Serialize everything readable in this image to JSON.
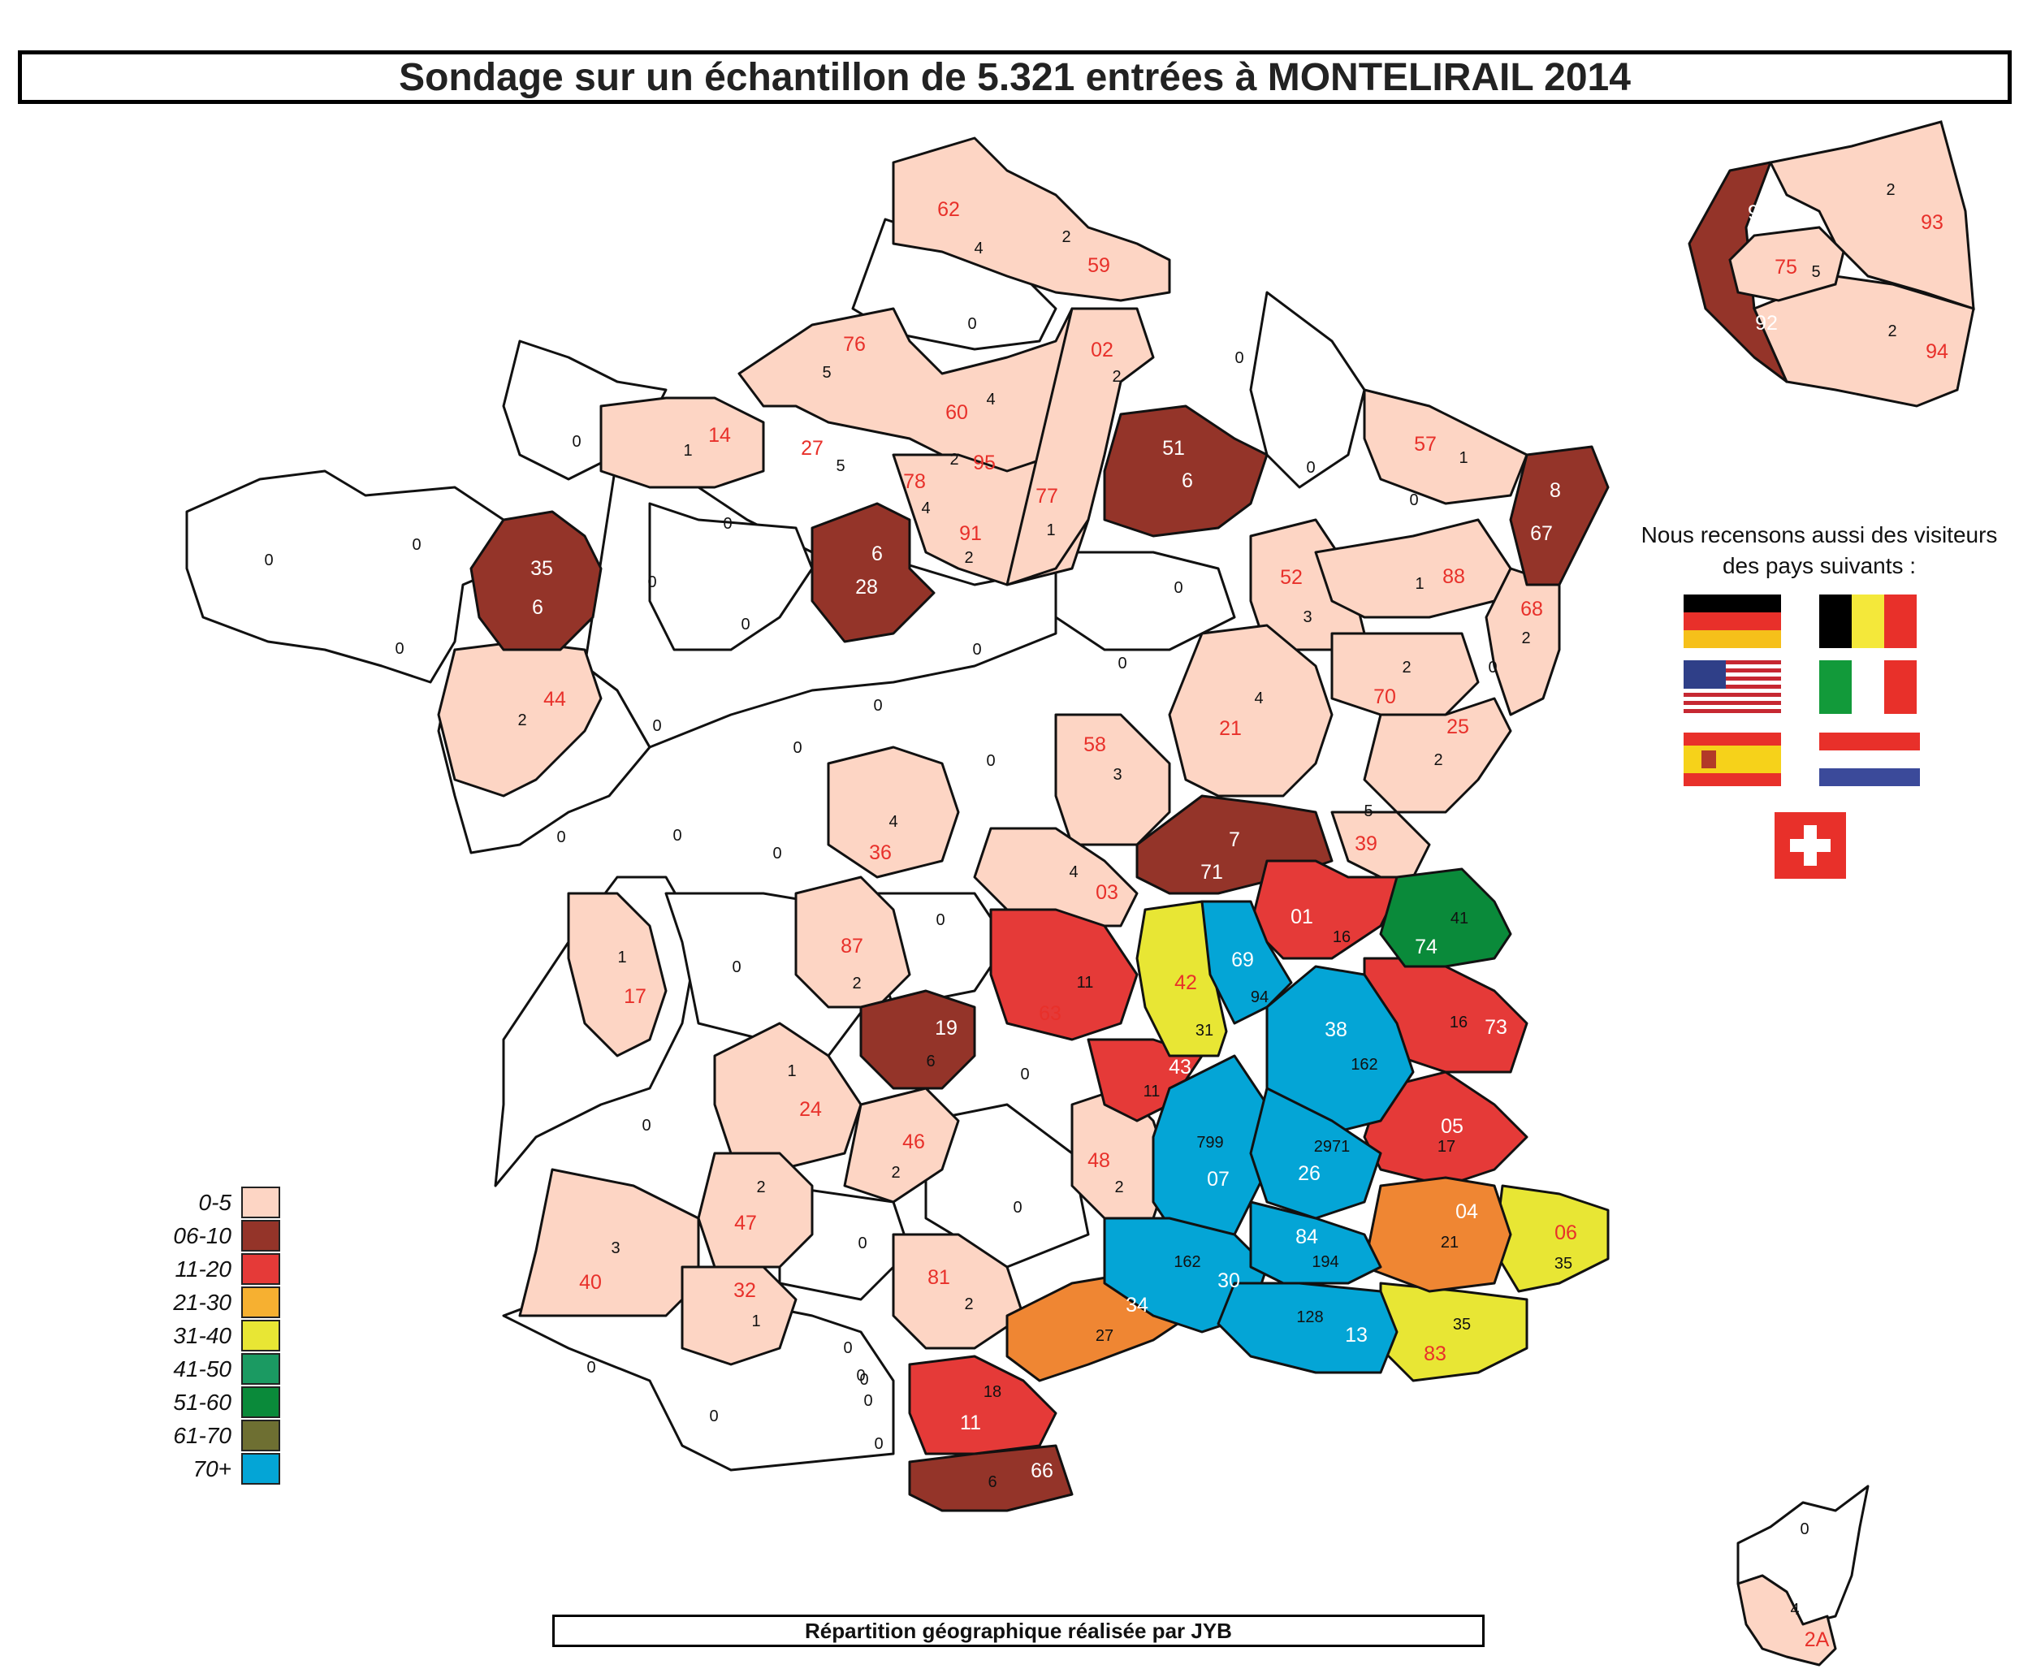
{
  "title": "Sondage sur un échantillon de  5.321 entrées à MONTELIRAIL 2014",
  "footer": "Répartition géographique réalisée par JYB",
  "legend": [
    {
      "label": "0-5",
      "color": "#fdd5c4"
    },
    {
      "label": "06-10",
      "color": "#943429"
    },
    {
      "label": "11-20",
      "color": "#e53a38"
    },
    {
      "label": "21-30",
      "color": "#f6b031"
    },
    {
      "label": "31-40",
      "color": "#e8e634"
    },
    {
      "label": "41-50",
      "color": "#1b9a62"
    },
    {
      "label": "51-60",
      "color": "#0a8a3a"
    },
    {
      "label": "61-70",
      "color": "#6e6f32"
    },
    {
      "label": "70+",
      "color": "#04a5d6"
    }
  ],
  "foreign_note": "Nous recensons aussi des visiteurs des pays suivants :",
  "foreign_flags": [
    "germany-flag",
    "belgium-flag",
    "usa-flag",
    "italy-flag",
    "spain-flag",
    "netherlands-flag",
    "switzerland-flag"
  ],
  "departments": [
    {
      "code": "62",
      "count": "4"
    },
    {
      "code": "59",
      "count": "2"
    },
    {
      "code": "",
      "count": "0"
    },
    {
      "code": "76",
      "count": "5"
    },
    {
      "code": "02",
      "count": "2"
    },
    {
      "code": "",
      "count": "0"
    },
    {
      "code": "60",
      "count": "4"
    },
    {
      "code": "14",
      "count": "1"
    },
    {
      "code": "27",
      "count": "5"
    },
    {
      "code": "95",
      "count": "2"
    },
    {
      "code": "78",
      "count": "4"
    },
    {
      "code": "77",
      "count": "1"
    },
    {
      "code": "91",
      "count": "2"
    },
    {
      "code": "51",
      "count": "6"
    },
    {
      "code": "57",
      "count": "1"
    },
    {
      "code": "67",
      "count": "8"
    },
    {
      "code": "35",
      "count": "6"
    },
    {
      "code": "28",
      "count": "6"
    },
    {
      "code": "52",
      "count": "3"
    },
    {
      "code": "88",
      "count": "1"
    },
    {
      "code": "68",
      "count": "2"
    },
    {
      "code": "44",
      "count": "2"
    },
    {
      "code": "21",
      "count": "4"
    },
    {
      "code": "70",
      "count": "2"
    },
    {
      "code": "25",
      "count": "2"
    },
    {
      "code": "58",
      "count": "3"
    },
    {
      "code": "36",
      "count": "4"
    },
    {
      "code": "39",
      "count": "5"
    },
    {
      "code": "71",
      "count": "7"
    },
    {
      "code": "03",
      "count": "4"
    },
    {
      "code": "01",
      "count": "16"
    },
    {
      "code": "74",
      "count": "41"
    },
    {
      "code": "87",
      "count": "2"
    },
    {
      "code": "42",
      "count": "31"
    },
    {
      "code": "69",
      "count": "94"
    },
    {
      "code": "17",
      "count": "1"
    },
    {
      "code": "63",
      "count": "11"
    },
    {
      "code": "38",
      "count": "162"
    },
    {
      "code": "73",
      "count": "16"
    },
    {
      "code": "19",
      "count": "6"
    },
    {
      "code": "43",
      "count": "11"
    },
    {
      "code": "24",
      "count": "1"
    },
    {
      "code": "46",
      "count": "2"
    },
    {
      "code": "48",
      "count": "2"
    },
    {
      "code": "07",
      "count": "799"
    },
    {
      "code": "26",
      "count": "2971"
    },
    {
      "code": "05",
      "count": "17"
    },
    {
      "code": "04",
      "count": "21"
    },
    {
      "code": "06",
      "count": "35"
    },
    {
      "code": "47",
      "count": "2"
    },
    {
      "code": "40",
      "count": "3"
    },
    {
      "code": "32",
      "count": "1"
    },
    {
      "code": "81",
      "count": "2"
    },
    {
      "code": "30",
      "count": "162"
    },
    {
      "code": "84",
      "count": "194"
    },
    {
      "code": "34",
      "count": "27"
    },
    {
      "code": "13",
      "count": "128"
    },
    {
      "code": "83",
      "count": "35"
    },
    {
      "code": "11",
      "count": "18"
    },
    {
      "code": "66",
      "count": "6"
    },
    {
      "code": "2A",
      "count": "4"
    },
    {
      "code": "",
      "count": "0"
    },
    {
      "code": "75",
      "count": "5"
    },
    {
      "code": "92",
      "count": "9"
    },
    {
      "code": "93",
      "count": "2"
    },
    {
      "code": "94",
      "count": "2"
    }
  ],
  "zero_labels": [
    "0",
    "0",
    "0",
    "0",
    "0",
    "0",
    "0",
    "0",
    "0",
    "0",
    "0",
    "0",
    "0",
    "0",
    "0",
    "0",
    "0",
    "0",
    "0",
    "0",
    "0",
    "0",
    "0",
    "0",
    "0",
    "0",
    "0",
    "0",
    "0",
    "0",
    "0",
    "0",
    "0",
    "0",
    "0"
  ]
}
